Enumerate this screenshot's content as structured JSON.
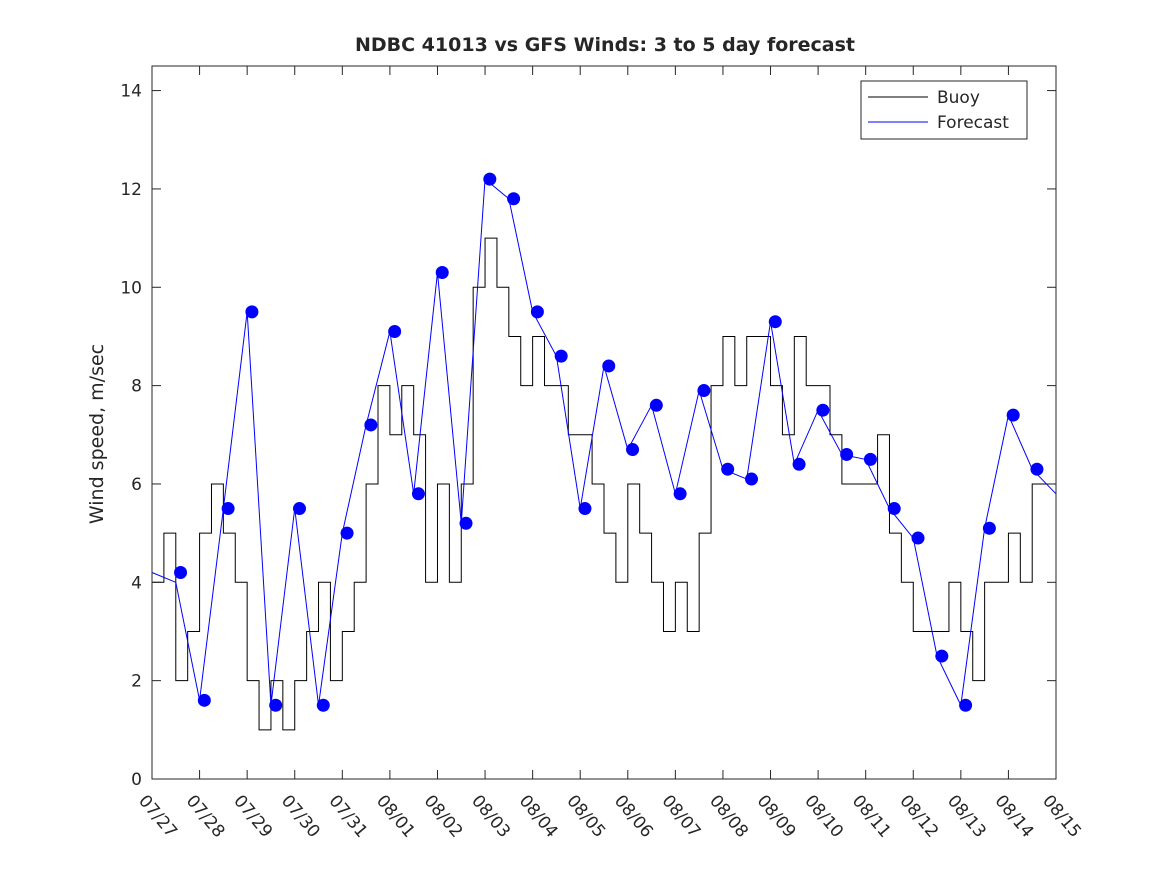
{
  "chart_data": {
    "type": "line",
    "title": "NDBC 41013 vs GFS Winds: 3 to 5 day forecast",
    "xlabel": "",
    "ylabel": "Wind speed, m/sec",
    "xlim": [
      0,
      19
    ],
    "ylim": [
      0,
      14.5
    ],
    "x_tick_values": [
      0,
      1,
      2,
      3,
      4,
      5,
      6,
      7,
      8,
      9,
      10,
      11,
      12,
      13,
      14,
      15,
      16,
      17,
      18,
      19
    ],
    "x_tick_labels": [
      "07/27",
      "07/28",
      "07/29",
      "07/30",
      "07/31",
      "08/01",
      "08/02",
      "08/03",
      "08/04",
      "08/05",
      "08/06",
      "08/07",
      "08/08",
      "08/09",
      "08/10",
      "08/11",
      "08/12",
      "08/13",
      "08/14",
      "08/15"
    ],
    "y_tick_values": [
      0,
      2,
      4,
      6,
      8,
      10,
      12,
      14
    ],
    "y_tick_labels": [
      "0",
      "2",
      "4",
      "6",
      "8",
      "10",
      "12",
      "14"
    ],
    "grid": false,
    "legend_position": "top-right",
    "x_unit_note": "x values in days after 07/27 00:00",
    "colors": {
      "buoy": "#000000",
      "forecast": "#0000ff",
      "axes": "#262626"
    },
    "legend": [
      {
        "label": "Buoy",
        "color": "#000000"
      },
      {
        "label": "Forecast",
        "color": "#0000ff"
      }
    ],
    "series": [
      {
        "name": "Buoy",
        "x": [
          0.0,
          0.25,
          0.5,
          0.75,
          1.0,
          1.25,
          1.5,
          1.75,
          2.0,
          2.25,
          2.5,
          2.75,
          3.0,
          3.25,
          3.5,
          3.75,
          4.0,
          4.25,
          4.5,
          4.75,
          5.0,
          5.25,
          5.5,
          5.75,
          6.0,
          6.25,
          6.5,
          6.75,
          7.0,
          7.25,
          7.5,
          7.75,
          8.0,
          8.25,
          8.5,
          8.75,
          9.0,
          9.25,
          9.5,
          9.75,
          10.0,
          10.25,
          10.5,
          10.75,
          11.0,
          11.25,
          11.5,
          11.75,
          12.0,
          12.25,
          12.5,
          12.75,
          13.0,
          13.25,
          13.5,
          13.75,
          14.0,
          14.25,
          14.5,
          14.75,
          15.0,
          15.25,
          15.5,
          15.75,
          16.0,
          16.25,
          16.5,
          16.75,
          17.0,
          17.25,
          17.5,
          17.75,
          18.0,
          18.25,
          18.5,
          18.75,
          19.0
        ],
        "values": [
          4,
          5,
          2,
          3,
          5,
          6,
          5,
          4,
          2,
          1,
          2,
          1,
          2,
          3,
          4,
          2,
          3,
          4,
          6,
          8,
          7,
          8,
          7,
          4,
          6,
          4,
          6,
          10,
          11,
          10,
          9,
          8,
          9,
          8,
          8,
          7,
          7,
          6,
          5,
          4,
          6,
          5,
          4,
          3,
          4,
          3,
          5,
          8,
          9,
          8,
          9,
          9,
          8,
          7,
          9,
          8,
          8,
          7,
          6,
          6,
          6,
          7,
          5,
          4,
          3,
          3,
          3,
          4,
          3,
          2,
          4,
          4,
          5,
          4,
          6,
          6,
          6
        ]
      },
      {
        "name": "Forecast",
        "x": [
          0.0,
          0.5,
          1.0,
          1.5,
          2.0,
          2.5,
          3.0,
          3.5,
          4.0,
          4.5,
          5.0,
          5.5,
          6.0,
          6.5,
          7.0,
          7.5,
          8.0,
          8.5,
          9.0,
          9.5,
          10.0,
          10.5,
          11.0,
          11.5,
          12.0,
          12.5,
          13.0,
          13.5,
          14.0,
          14.5,
          15.0,
          15.5,
          16.0,
          16.5,
          17.0,
          17.5,
          18.0,
          18.5,
          19.0
        ],
        "values": [
          4.2,
          4.0,
          1.6,
          5.5,
          9.5,
          1.5,
          5.5,
          1.5,
          5.0,
          7.2,
          9.1,
          5.8,
          10.3,
          5.2,
          12.2,
          11.8,
          9.5,
          8.6,
          5.5,
          8.4,
          6.7,
          7.6,
          5.8,
          7.9,
          6.3,
          6.1,
          9.3,
          6.4,
          7.5,
          6.6,
          6.5,
          5.5,
          4.9,
          2.5,
          1.5,
          5.1,
          7.4,
          6.3,
          5.8
        ]
      }
    ],
    "forecast_markers": {
      "x": [
        0.6,
        1.1,
        1.6,
        2.1,
        2.6,
        3.1,
        3.6,
        4.1,
        4.6,
        5.1,
        5.6,
        6.1,
        6.6,
        7.1,
        7.6,
        8.1,
        8.6,
        9.1,
        9.6,
        10.1,
        10.6,
        11.1,
        11.6,
        12.1,
        12.6,
        13.1,
        13.6,
        14.1,
        14.6,
        15.1,
        15.6,
        16.1,
        16.6,
        17.1,
        17.6,
        18.1,
        18.6
      ],
      "values": [
        4.2,
        1.6,
        5.5,
        9.5,
        1.5,
        5.5,
        1.5,
        5.0,
        7.2,
        9.1,
        5.8,
        10.3,
        5.2,
        12.2,
        11.8,
        9.5,
        8.6,
        5.5,
        8.4,
        6.7,
        7.6,
        5.8,
        7.9,
        6.3,
        6.1,
        9.3,
        6.4,
        7.5,
        6.6,
        6.5,
        5.5,
        4.9,
        2.5,
        1.5,
        5.1,
        7.4,
        6.3
      ]
    }
  }
}
